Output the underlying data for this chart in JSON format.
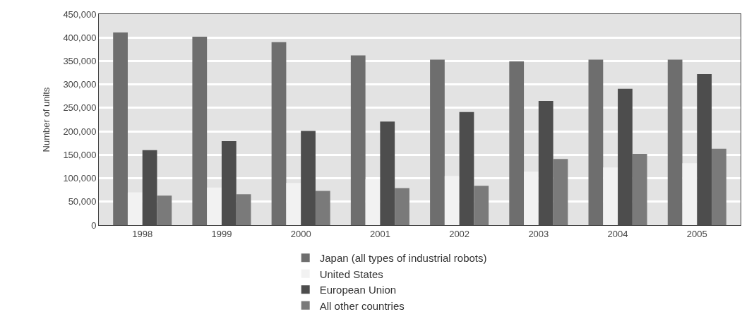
{
  "chart_data": {
    "type": "bar",
    "ylabel": "Number of units",
    "categories": [
      "1998",
      "1999",
      "2000",
      "2001",
      "2002",
      "2003",
      "2004",
      "2005"
    ],
    "series": [
      {
        "name": "Japan (all types of industrial robots)",
        "color": "#6e6e6e",
        "values": [
          411000,
          402000,
          390000,
          362000,
          353000,
          349000,
          353000,
          353000
        ]
      },
      {
        "name": "United States",
        "color": "#f2f2f2",
        "values": [
          70000,
          80000,
          90000,
          98000,
          105000,
          114000,
          123000,
          132000
        ]
      },
      {
        "name": "European Union",
        "color": "#4d4d4d",
        "values": [
          160000,
          179000,
          201000,
          221000,
          241000,
          265000,
          291000,
          322000
        ]
      },
      {
        "name": "All other countries",
        "color": "#7a7a7a",
        "values": [
          63000,
          66000,
          73000,
          79000,
          84000,
          141000,
          152000,
          163000
        ]
      }
    ],
    "ylim": [
      0,
      450000
    ],
    "yticks": [
      {
        "value": 0,
        "label": "0"
      },
      {
        "value": 50000,
        "label": "50,000"
      },
      {
        "value": 100000,
        "label": "100,000"
      },
      {
        "value": 150000,
        "label": "150,000"
      },
      {
        "value": 200000,
        "label": "200,000"
      },
      {
        "value": 250000,
        "label": "250,000"
      },
      {
        "value": 300000,
        "label": "300,000"
      },
      {
        "value": 350000,
        "label": "350,000"
      },
      {
        "value": 400000,
        "label": "400,000"
      },
      {
        "value": 450000,
        "label": "450,000"
      }
    ],
    "grid": "y",
    "legend": "bottom"
  }
}
